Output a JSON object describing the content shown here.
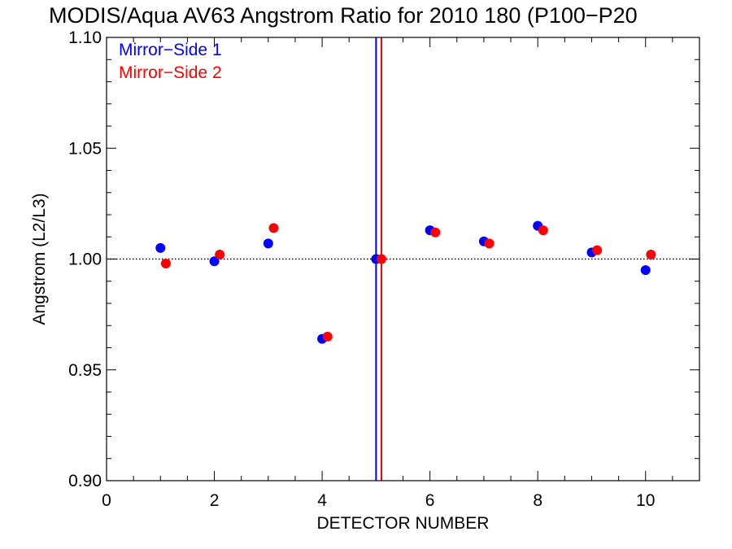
{
  "chart_data": {
    "type": "scatter",
    "title": "MODIS/Aqua AV63 Angstrom Ratio for 2010 180 (P100−P20",
    "xlabel": "DETECTOR NUMBER",
    "ylabel": "Angstrom (L2/L3)",
    "xlim": [
      0,
      11
    ],
    "ylim": [
      0.9,
      1.1
    ],
    "x_ticks": [
      0,
      2,
      4,
      6,
      8,
      10
    ],
    "x_tick_labels": [
      "0",
      "2",
      "4",
      "6",
      "8",
      "10"
    ],
    "y_ticks": [
      0.9,
      0.95,
      1.0,
      1.05,
      1.1
    ],
    "y_tick_labels": [
      "0.90",
      "0.95",
      "1.00",
      "1.05",
      "1.10"
    ],
    "reference_line_y": 1.0,
    "legend_position": "top-left",
    "series": [
      {
        "name": "Mirror−Side 1",
        "color": "#0000ff",
        "x": [
          1,
          2,
          3,
          4,
          5,
          6,
          7,
          8,
          9,
          10
        ],
        "y": [
          1.005,
          0.999,
          1.007,
          0.964,
          1.0,
          1.013,
          1.008,
          1.015,
          1.003,
          0.995
        ],
        "vline_x": 5.0
      },
      {
        "name": "Mirror−Side 2",
        "color": "#ff0000",
        "x": [
          1.1,
          2.1,
          3.1,
          4.1,
          5.1,
          6.1,
          7.1,
          8.1,
          9.1,
          10.1
        ],
        "y": [
          0.998,
          1.002,
          1.014,
          0.965,
          1.0,
          1.012,
          1.007,
          1.013,
          1.004,
          1.002
        ],
        "vline_x": 5.1
      }
    ]
  }
}
